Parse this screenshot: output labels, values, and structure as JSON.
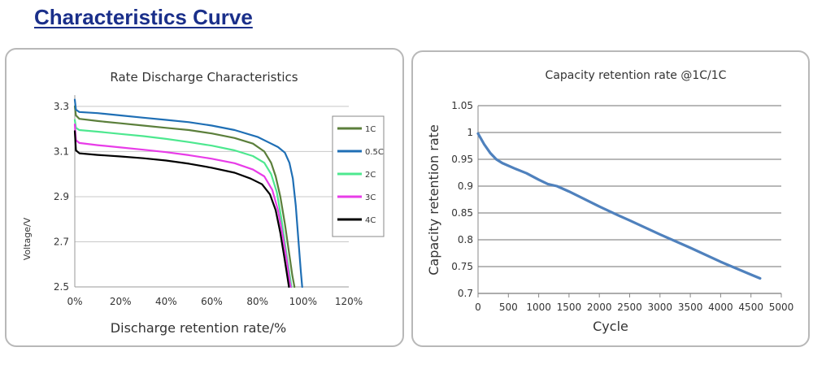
{
  "page": {
    "heading": "Characteristics Curve"
  },
  "chart_data": [
    {
      "type": "line",
      "title": "Rate Discharge Characteristics",
      "xlabel": "Discharge retention rate/%",
      "ylabel": "Voltage/V",
      "xlim": [
        0,
        120
      ],
      "ylim": [
        2.5,
        3.35
      ],
      "x_ticks": [
        "0%",
        "20%",
        "40%",
        "60%",
        "80%",
        "100%",
        "120%"
      ],
      "x_tick_values": [
        0,
        20,
        40,
        60,
        80,
        100,
        120
      ],
      "y_ticks": [
        "2.5",
        "2.7",
        "2.9",
        "3.1",
        "3.3"
      ],
      "y_tick_values": [
        2.5,
        2.7,
        2.9,
        3.1,
        3.3
      ],
      "grid": "horizontal",
      "legend_placement": "right",
      "legend": [
        "1C",
        "0.5C",
        "2C",
        "3C",
        "4C"
      ],
      "series": [
        {
          "name": "1C",
          "color": "#5b7f3b",
          "points": [
            [
              0,
              3.3
            ],
            [
              0.5,
              3.26
            ],
            [
              2,
              3.245
            ],
            [
              10,
              3.235
            ],
            [
              20,
              3.225
            ],
            [
              30,
              3.215
            ],
            [
              40,
              3.205
            ],
            [
              50,
              3.195
            ],
            [
              60,
              3.18
            ],
            [
              70,
              3.16
            ],
            [
              78,
              3.135
            ],
            [
              83,
              3.1
            ],
            [
              86,
              3.05
            ],
            [
              88,
              2.99
            ],
            [
              90,
              2.9
            ],
            [
              92,
              2.78
            ],
            [
              94,
              2.64
            ],
            [
              95.3,
              2.55
            ],
            [
              96.2,
              2.5
            ]
          ]
        },
        {
          "name": "0.5C",
          "color": "#1f6fb5",
          "points": [
            [
              0,
              3.33
            ],
            [
              0.5,
              3.285
            ],
            [
              2,
              3.275
            ],
            [
              10,
              3.27
            ],
            [
              20,
              3.26
            ],
            [
              30,
              3.25
            ],
            [
              40,
              3.24
            ],
            [
              50,
              3.23
            ],
            [
              60,
              3.215
            ],
            [
              70,
              3.195
            ],
            [
              80,
              3.165
            ],
            [
              85,
              3.14
            ],
            [
              89,
              3.12
            ],
            [
              92,
              3.095
            ],
            [
              94,
              3.05
            ],
            [
              95.5,
              2.98
            ],
            [
              96.8,
              2.86
            ],
            [
              98,
              2.7
            ],
            [
              99,
              2.57
            ],
            [
              99.6,
              2.5
            ]
          ]
        },
        {
          "name": "2C",
          "color": "#4de88f",
          "points": [
            [
              0,
              3.24
            ],
            [
              0.5,
              3.205
            ],
            [
              2,
              3.195
            ],
            [
              10,
              3.188
            ],
            [
              20,
              3.178
            ],
            [
              30,
              3.168
            ],
            [
              40,
              3.156
            ],
            [
              50,
              3.142
            ],
            [
              60,
              3.126
            ],
            [
              70,
              3.105
            ],
            [
              78,
              3.08
            ],
            [
              83,
              3.05
            ],
            [
              86,
              3.0
            ],
            [
              88.5,
              2.92
            ],
            [
              90.5,
              2.8
            ],
            [
              92.5,
              2.66
            ],
            [
              94,
              2.56
            ],
            [
              94.9,
              2.5
            ]
          ]
        },
        {
          "name": "3C",
          "color": "#e83ce8",
          "points": [
            [
              0,
              3.22
            ],
            [
              0.5,
              3.15
            ],
            [
              2,
              3.138
            ],
            [
              10,
              3.128
            ],
            [
              20,
              3.118
            ],
            [
              30,
              3.108
            ],
            [
              40,
              3.097
            ],
            [
              50,
              3.084
            ],
            [
              60,
              3.068
            ],
            [
              70,
              3.048
            ],
            [
              78,
              3.02
            ],
            [
              83,
              2.99
            ],
            [
              86.5,
              2.93
            ],
            [
              89,
              2.84
            ],
            [
              91,
              2.73
            ],
            [
              92.8,
              2.62
            ],
            [
              94.2,
              2.52
            ],
            [
              94.6,
              2.5
            ]
          ]
        },
        {
          "name": "4C",
          "color": "#000000",
          "points": [
            [
              0,
              3.19
            ],
            [
              0.5,
              3.105
            ],
            [
              2,
              3.092
            ],
            [
              10,
              3.085
            ],
            [
              20,
              3.078
            ],
            [
              30,
              3.07
            ],
            [
              40,
              3.06
            ],
            [
              50,
              3.046
            ],
            [
              60,
              3.028
            ],
            [
              70,
              3.006
            ],
            [
              77,
              2.98
            ],
            [
              82,
              2.955
            ],
            [
              85.5,
              2.91
            ],
            [
              88,
              2.84
            ],
            [
              90,
              2.74
            ],
            [
              91.8,
              2.63
            ],
            [
              93.2,
              2.54
            ],
            [
              93.8,
              2.5
            ]
          ]
        }
      ]
    },
    {
      "type": "line",
      "title": "Capacity retention rate @1C/1C",
      "xlabel": "Cycle",
      "ylabel": "Capacity retention rate",
      "xlim": [
        0,
        5000
      ],
      "ylim": [
        0.7,
        1.05
      ],
      "x_ticks": [
        "0",
        "500",
        "1000",
        "1500",
        "2000",
        "2500",
        "3000",
        "3500",
        "4000",
        "4500",
        "5000"
      ],
      "x_tick_values": [
        0,
        500,
        1000,
        1500,
        2000,
        2500,
        3000,
        3500,
        4000,
        4500,
        5000
      ],
      "y_ticks": [
        "0.7",
        "0.75",
        "0.8",
        "0.85",
        "0.9",
        "0.95",
        "1",
        "1.05"
      ],
      "y_tick_values": [
        0.7,
        0.75,
        0.8,
        0.85,
        0.9,
        0.95,
        1.0,
        1.05
      ],
      "grid": "horizontal",
      "series": [
        {
          "color": "#4f81bd",
          "points": [
            [
              0,
              0.998
            ],
            [
              100,
              0.978
            ],
            [
              200,
              0.962
            ],
            [
              300,
              0.95
            ],
            [
              400,
              0.943
            ],
            [
              600,
              0.933
            ],
            [
              800,
              0.924
            ],
            [
              1000,
              0.912
            ],
            [
              1150,
              0.904
            ],
            [
              1300,
              0.9
            ],
            [
              1500,
              0.89
            ],
            [
              1700,
              0.879
            ],
            [
              2000,
              0.862
            ],
            [
              2300,
              0.846
            ],
            [
              2500,
              0.836
            ],
            [
              3000,
              0.81
            ],
            [
              3500,
              0.785
            ],
            [
              4000,
              0.759
            ],
            [
              4500,
              0.735
            ],
            [
              4650,
              0.728
            ]
          ]
        }
      ]
    }
  ]
}
